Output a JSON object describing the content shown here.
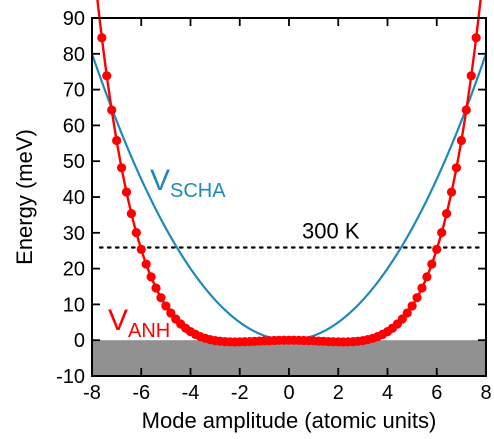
{
  "chart_data": {
    "type": "line",
    "xlabel": "Mode amplitude (atomic units)",
    "ylabel": "Energy (meV)",
    "xlim": [
      -8,
      8
    ],
    "ylim": [
      -10,
      90
    ],
    "xticks": [
      -8,
      -6,
      -4,
      -2,
      0,
      2,
      4,
      6,
      8
    ],
    "yticks": [
      -10,
      0,
      10,
      20,
      30,
      40,
      50,
      60,
      70,
      80,
      90
    ],
    "shaded_region": {
      "y_from": -10,
      "y_to": 0,
      "color": "#919191"
    },
    "reference_line": {
      "y": 25.9,
      "style": "dotted",
      "label": "300 K"
    },
    "series": [
      {
        "name_main": "V",
        "name_sub": "SCHA",
        "type": "quadratic",
        "a": 1.25,
        "color": "#1f8ab8",
        "markers": false
      },
      {
        "name_main": "V",
        "name_sub": "ANH",
        "type": "double_well",
        "c": [
          0,
          -0.196,
          0.0189,
          0.00017
        ],
        "color": "#ff0000",
        "markers": true,
        "marker_step": 0.2
      }
    ]
  }
}
